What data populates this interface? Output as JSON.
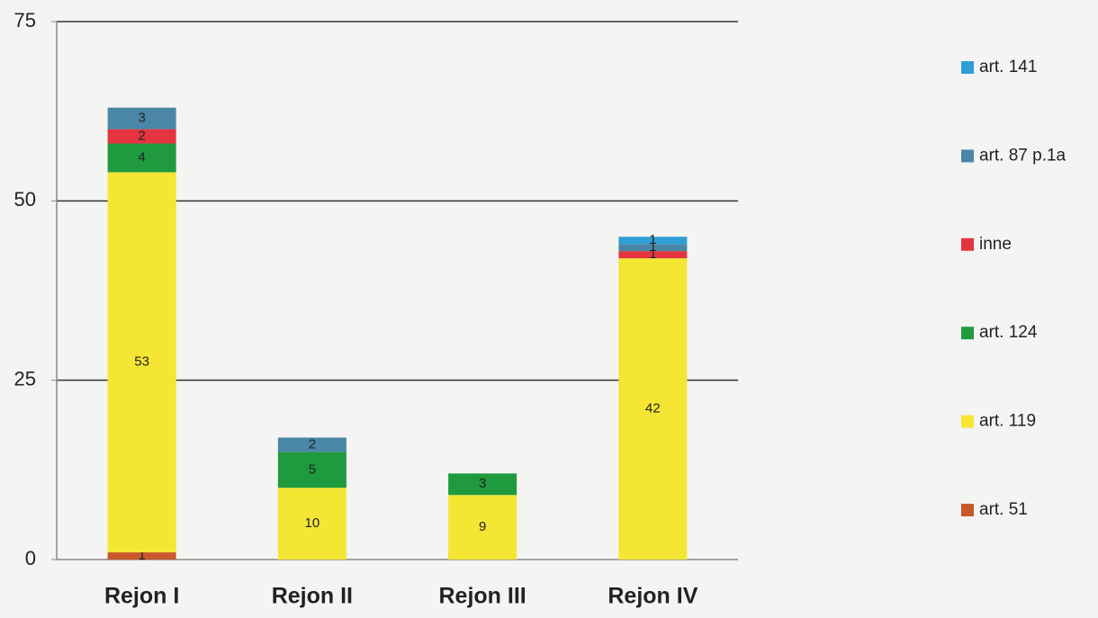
{
  "chart_data": {
    "type": "stacked_bar",
    "categories": [
      "Rejon I",
      "Rejon II",
      "Rejon III",
      "Rejon IV"
    ],
    "series": [
      {
        "name": "art. 51",
        "color": "#c9592c",
        "values": [
          1,
          null,
          null,
          null
        ]
      },
      {
        "name": "art. 119",
        "color": "#f4e633",
        "values": [
          53,
          10,
          9,
          42
        ]
      },
      {
        "name": "art. 124",
        "color": "#1f9a3e",
        "values": [
          4,
          5,
          3,
          null
        ]
      },
      {
        "name": "inne",
        "color": "#e4343f",
        "values": [
          2,
          null,
          null,
          1
        ]
      },
      {
        "name": "art. 87 p.1a",
        "color": "#4a86a6",
        "values": [
          3,
          2,
          null,
          1
        ]
      },
      {
        "name": "art. 141",
        "color": "#2f9fd6",
        "values": [
          null,
          null,
          null,
          1
        ]
      }
    ],
    "ylim": [
      0,
      75
    ],
    "yticks": [
      0,
      25,
      50,
      75
    ],
    "grid": true,
    "legend": "right"
  }
}
